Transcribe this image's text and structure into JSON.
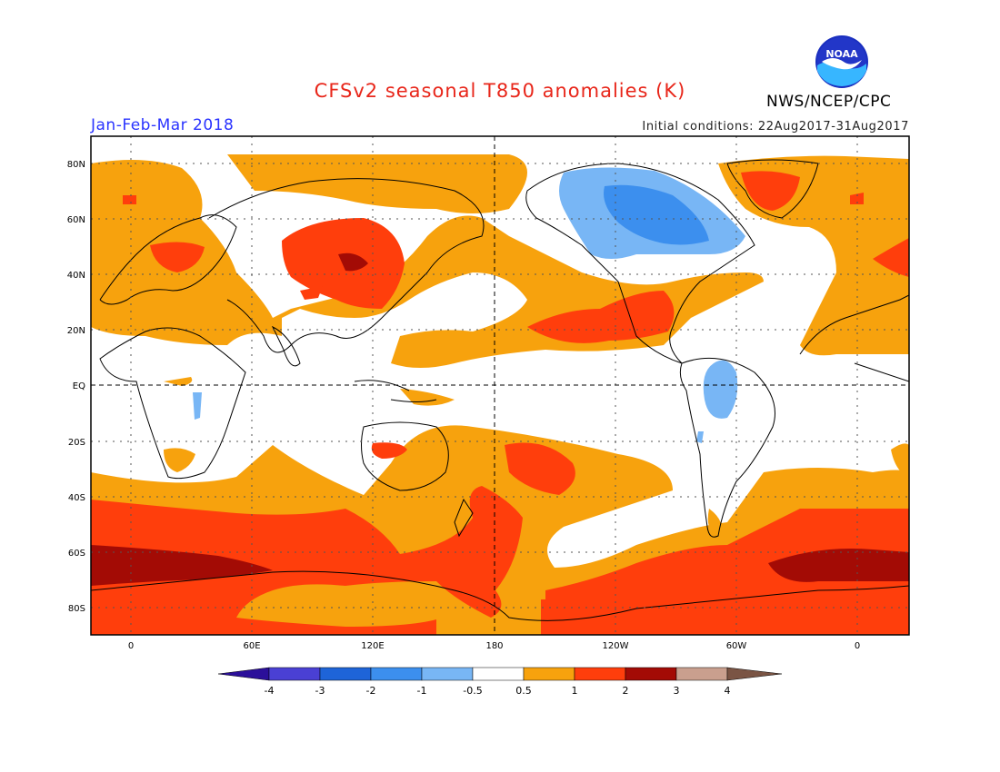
{
  "header": {
    "title": "CFSv2 seasonal T850 anomalies (K)",
    "agency": "NWS/NCEP/CPC",
    "season": "Jan-Feb-Mar 2018",
    "initial_conditions": "Initial conditions: 22Aug2017-31Aug2017",
    "logo_text": "NOAA"
  },
  "axes": {
    "lat_labels": [
      "80N",
      "60N",
      "40N",
      "20N",
      "EQ",
      "20S",
      "40S",
      "60S",
      "80S"
    ],
    "lon_labels": [
      "0",
      "60E",
      "120E",
      "180",
      "120W",
      "60W",
      "0"
    ]
  },
  "colorbar": {
    "labels": [
      "-4",
      "-3",
      "-2",
      "-1",
      "-0.5",
      "0.5",
      "1",
      "2",
      "3",
      "4"
    ],
    "colors": [
      "#2b0f9a",
      "#4a40d4",
      "#1e64d8",
      "#3c8fee",
      "#78b6f5",
      "#ffffff",
      "#f7a20d",
      "#ff3e0c",
      "#a30b05",
      "#c99f8e",
      "#7a5444"
    ]
  },
  "palette": {
    "weak_warm": "#f7a20d",
    "mod_warm": "#ff3e0c",
    "strong_warm": "#a30b05",
    "weak_cool": "#78b6f5",
    "mod_cool": "#3c8fee",
    "title_color": "#e8261a",
    "season_color": "#2a33ff"
  }
}
